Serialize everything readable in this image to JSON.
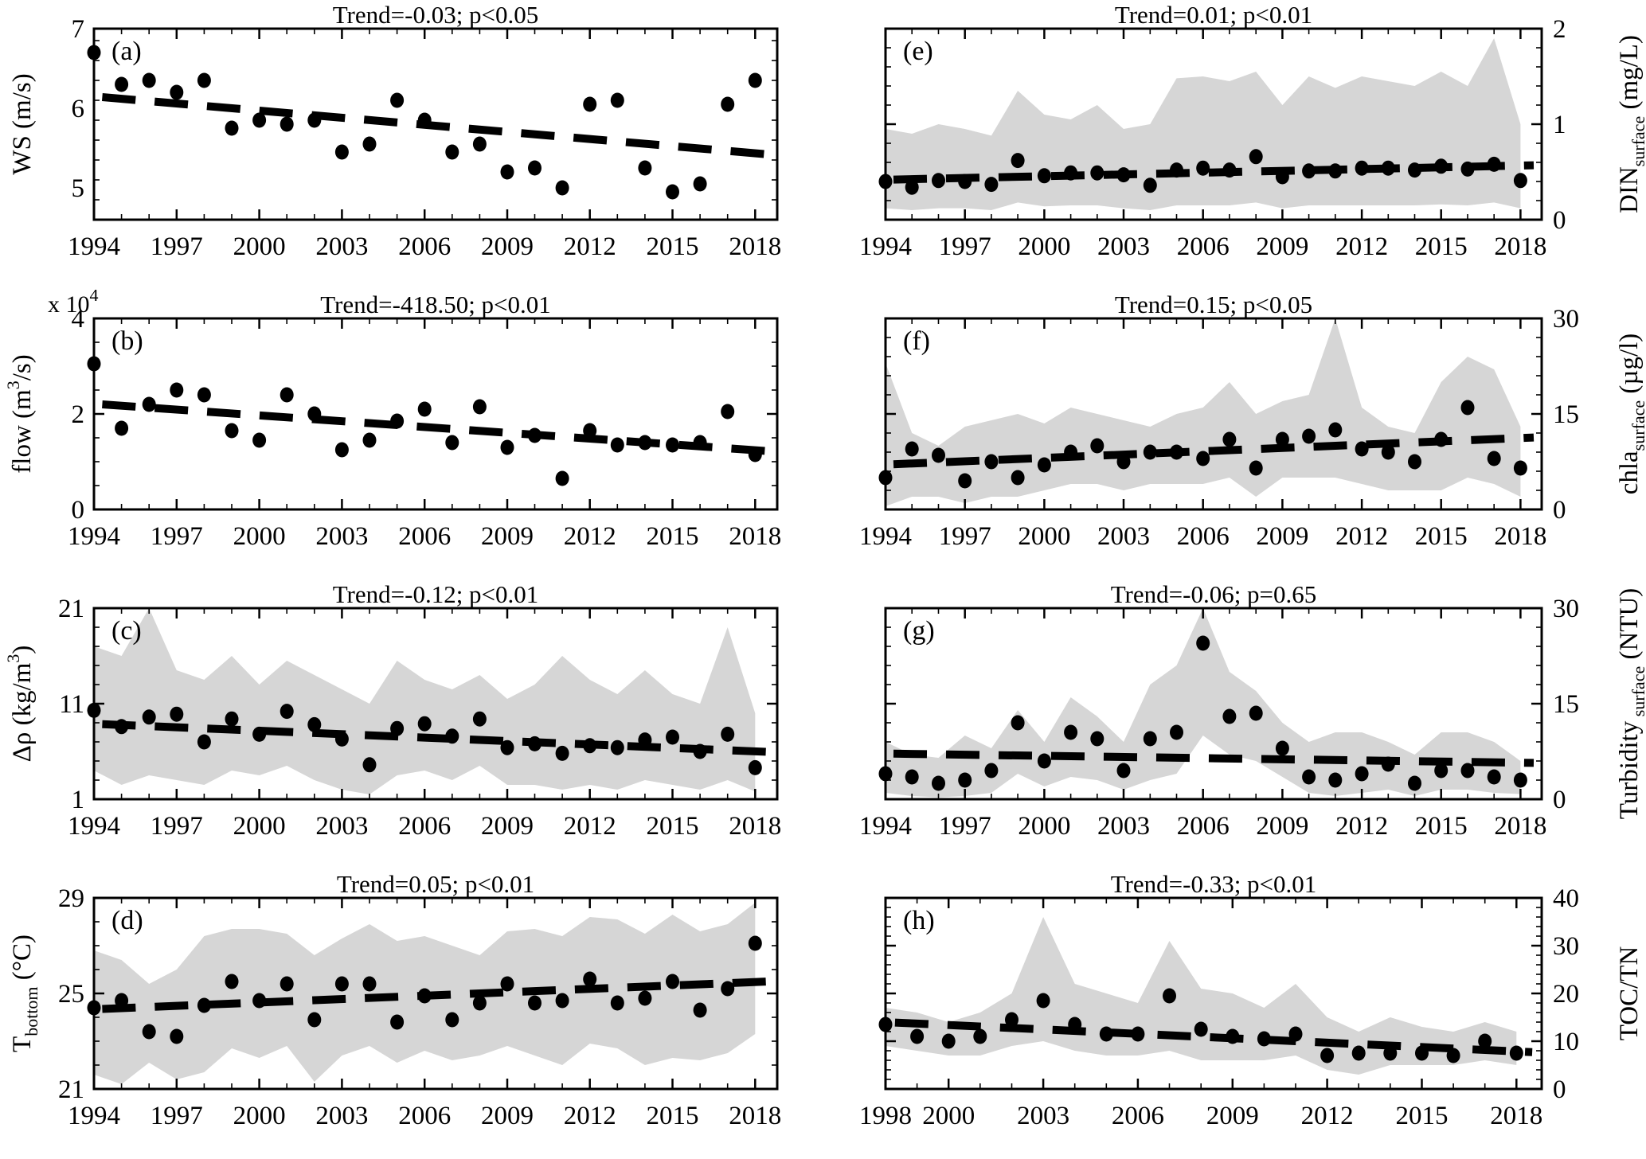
{
  "figure": {
    "background": "#ffffff",
    "band_color": "#d6d6d6",
    "point_color": "#000000",
    "axis_color": "#000000",
    "trend_style": "dashed-black"
  },
  "chart_data": [
    {
      "id": "a",
      "type": "scatter",
      "row": 0,
      "col": 0,
      "side": "left",
      "letter": "(a)",
      "title": "Trend=-0.03; p<0.05",
      "ylabel_parts": [
        {
          "t": "WS (m/s)"
        }
      ],
      "ylim": [
        4.6,
        7
      ],
      "yticks": [
        5,
        6,
        7
      ],
      "yminor": 0.25,
      "xlim": [
        1994,
        2018.8
      ],
      "xticks": [
        1994,
        1997,
        2000,
        2003,
        2006,
        2009,
        2012,
        2015,
        2018
      ],
      "years": [
        1994,
        1995,
        1996,
        1997,
        1998,
        1999,
        2000,
        2001,
        2002,
        2003,
        2004,
        2005,
        2006,
        2007,
        2008,
        2009,
        2010,
        2011,
        2012,
        2013,
        2014,
        2015,
        2016,
        2017,
        2018
      ],
      "values": [
        6.7,
        6.3,
        6.35,
        6.2,
        6.35,
        5.75,
        5.85,
        5.8,
        5.85,
        5.45,
        5.55,
        6.1,
        5.85,
        5.45,
        5.55,
        5.2,
        5.25,
        5.0,
        6.05,
        6.1,
        5.25,
        4.95,
        5.05,
        6.05,
        6.35
      ],
      "trend": {
        "x": [
          1994.3,
          2018.5
        ],
        "y": [
          6.14,
          5.42
        ]
      },
      "band": null
    },
    {
      "id": "b",
      "type": "scatter",
      "row": 1,
      "col": 0,
      "side": "left",
      "letter": "(b)",
      "title": "Trend=-418.50; p<0.01",
      "ylabel_parts": [
        {
          "t": "flow (m"
        },
        {
          "t": "3",
          "s": "sup"
        },
        {
          "t": "/s)"
        }
      ],
      "offset_parts": [
        {
          "t": "x 10"
        },
        {
          "t": "4",
          "s": "sup"
        }
      ],
      "ylim": [
        0,
        4
      ],
      "yticks": [
        0,
        2,
        4
      ],
      "yminor": 0.5,
      "xlim": [
        1994,
        2018.8
      ],
      "xticks": [
        1994,
        1997,
        2000,
        2003,
        2006,
        2009,
        2012,
        2015,
        2018
      ],
      "years": [
        1994,
        1995,
        1996,
        1997,
        1998,
        1999,
        2000,
        2001,
        2002,
        2003,
        2004,
        2005,
        2006,
        2007,
        2008,
        2009,
        2010,
        2011,
        2012,
        2013,
        2014,
        2015,
        2016,
        2017,
        2018
      ],
      "values": [
        3.05,
        1.7,
        2.2,
        2.5,
        2.4,
        1.65,
        1.45,
        2.4,
        2.0,
        1.25,
        1.45,
        1.85,
        2.1,
        1.4,
        2.15,
        1.3,
        1.55,
        0.65,
        1.65,
        1.35,
        1.4,
        1.35,
        1.4,
        2.05,
        1.15
      ],
      "trend": {
        "x": [
          1994.3,
          2018.5
        ],
        "y": [
          2.2,
          1.22
        ]
      },
      "band": null
    },
    {
      "id": "c",
      "type": "scatter",
      "row": 2,
      "col": 0,
      "side": "left",
      "letter": "(c)",
      "title": "Trend=-0.12; p<0.01",
      "ylabel_parts": [
        {
          "t": "Δρ (kg/m"
        },
        {
          "t": "3",
          "s": "sup"
        },
        {
          "t": ")"
        }
      ],
      "ylim": [
        1,
        21
      ],
      "yticks": [
        1,
        11,
        21
      ],
      "yminor": 2,
      "xlim": [
        1994,
        2018.8
      ],
      "xticks": [
        1994,
        1997,
        2000,
        2003,
        2006,
        2009,
        2012,
        2015,
        2018
      ],
      "years": [
        1994,
        1995,
        1996,
        1997,
        1998,
        1999,
        2000,
        2001,
        2002,
        2003,
        2004,
        2005,
        2006,
        2007,
        2008,
        2009,
        2010,
        2011,
        2012,
        2013,
        2014,
        2015,
        2016,
        2017,
        2018
      ],
      "values": [
        10.3,
        8.6,
        9.6,
        9.9,
        7.0,
        9.4,
        7.8,
        10.2,
        8.8,
        7.3,
        4.6,
        8.4,
        8.9,
        7.6,
        9.4,
        6.4,
        6.8,
        5.8,
        6.6,
        6.4,
        7.2,
        7.5,
        6.0,
        7.8,
        4.3
      ],
      "trend": {
        "x": [
          1994.3,
          2018.5
        ],
        "y": [
          8.85,
          5.95
        ]
      },
      "band": {
        "upper": [
          17,
          16,
          21,
          14.5,
          13.5,
          16,
          13,
          15.5,
          14,
          12.5,
          11,
          15.5,
          13.5,
          12.5,
          14,
          11.5,
          13,
          16,
          13.5,
          12,
          14.5,
          12,
          11,
          19,
          10
        ],
        "lower": [
          4,
          2.5,
          3.5,
          3,
          2.5,
          4,
          3.5,
          4.5,
          3,
          2,
          1.5,
          3.5,
          4,
          3,
          4.5,
          2.5,
          2.5,
          2,
          2.5,
          2,
          3,
          2.5,
          2,
          3,
          1.8
        ]
      }
    },
    {
      "id": "d",
      "type": "scatter",
      "row": 3,
      "col": 0,
      "side": "left",
      "letter": "(d)",
      "title": "Trend=0.05; p<0.01",
      "ylabel_parts": [
        {
          "t": "T"
        },
        {
          "t": "bottom",
          "s": "sub"
        },
        {
          "t": " (°C)"
        }
      ],
      "ylim": [
        21,
        29
      ],
      "yticks": [
        21,
        25,
        29
      ],
      "yminor": 1,
      "xlim": [
        1994,
        2018.8
      ],
      "xticks": [
        1994,
        1997,
        2000,
        2003,
        2006,
        2009,
        2012,
        2015,
        2018
      ],
      "years": [
        1994,
        1995,
        1996,
        1997,
        1998,
        1999,
        2000,
        2001,
        2002,
        2003,
        2004,
        2005,
        2006,
        2007,
        2008,
        2009,
        2010,
        2011,
        2012,
        2013,
        2014,
        2015,
        2016,
        2017,
        2018
      ],
      "values": [
        24.4,
        24.7,
        23.4,
        23.2,
        24.5,
        25.5,
        24.7,
        25.4,
        23.9,
        25.4,
        25.4,
        23.8,
        24.9,
        23.9,
        24.6,
        25.4,
        24.6,
        24.7,
        25.6,
        24.6,
        24.8,
        25.5,
        24.3,
        25.2,
        27.1
      ],
      "trend": {
        "x": [
          1994.3,
          2018.5
        ],
        "y": [
          24.35,
          25.5
        ]
      },
      "band": {
        "upper": [
          26.8,
          26.4,
          25.4,
          26.0,
          27.4,
          27.7,
          27.7,
          27.5,
          26.6,
          27.3,
          27.9,
          27.2,
          27.4,
          27.0,
          26.6,
          27.6,
          27.7,
          27.4,
          28.2,
          28.1,
          27.5,
          28.3,
          27.6,
          27.9,
          28.8
        ],
        "lower": [
          21.6,
          21.2,
          22.1,
          21.4,
          21.7,
          22.7,
          22.3,
          22.8,
          21.3,
          22.4,
          22.8,
          22.1,
          22.6,
          22.2,
          22.4,
          22.8,
          22.4,
          22.0,
          22.9,
          22.7,
          22.0,
          22.3,
          22.2,
          22.5,
          23.3
        ]
      }
    },
    {
      "id": "e",
      "type": "scatter",
      "row": 0,
      "col": 1,
      "side": "right",
      "letter": "(e)",
      "title": "Trend=0.01; p<0.01",
      "ylabel_parts": [
        {
          "t": "DIN"
        },
        {
          "t": "surface",
          "s": "sub"
        },
        {
          "t": " (mg/L)"
        }
      ],
      "ylim": [
        0,
        2
      ],
      "yticks": [
        0,
        1,
        2
      ],
      "yminor": 0.2,
      "xlim": [
        1994,
        2018.8
      ],
      "xticks": [
        1994,
        1997,
        2000,
        2003,
        2006,
        2009,
        2012,
        2015,
        2018
      ],
      "years": [
        1994,
        1995,
        1996,
        1997,
        1998,
        1999,
        2000,
        2001,
        2002,
        2003,
        2004,
        2005,
        2006,
        2007,
        2008,
        2009,
        2010,
        2011,
        2012,
        2013,
        2014,
        2015,
        2016,
        2017,
        2018
      ],
      "values": [
        0.4,
        0.34,
        0.41,
        0.4,
        0.37,
        0.62,
        0.46,
        0.49,
        0.49,
        0.47,
        0.36,
        0.52,
        0.54,
        0.52,
        0.66,
        0.45,
        0.51,
        0.51,
        0.54,
        0.54,
        0.52,
        0.56,
        0.53,
        0.58,
        0.41
      ],
      "trend": {
        "x": [
          1994.3,
          2018.5
        ],
        "y": [
          0.42,
          0.57
        ]
      },
      "band": {
        "upper": [
          0.95,
          0.9,
          1.0,
          0.95,
          0.88,
          1.35,
          1.1,
          1.05,
          1.2,
          0.95,
          1.0,
          1.48,
          1.5,
          1.45,
          1.55,
          1.2,
          1.5,
          1.38,
          1.5,
          1.45,
          1.4,
          1.55,
          1.4,
          1.9,
          1.0
        ],
        "lower": [
          0.12,
          0.1,
          0.12,
          0.12,
          0.1,
          0.18,
          0.14,
          0.15,
          0.15,
          0.12,
          0.1,
          0.15,
          0.15,
          0.15,
          0.18,
          0.12,
          0.15,
          0.15,
          0.15,
          0.15,
          0.15,
          0.16,
          0.15,
          0.18,
          0.12
        ]
      }
    },
    {
      "id": "f",
      "type": "scatter",
      "row": 1,
      "col": 1,
      "side": "right",
      "letter": "(f)",
      "title": "Trend=0.15; p<0.05",
      "ylabel_parts": [
        {
          "t": "chla"
        },
        {
          "t": "surface",
          "s": "sub"
        },
        {
          "t": " (µg/l)"
        }
      ],
      "ylim": [
        0,
        30
      ],
      "yticks": [
        0,
        15,
        30
      ],
      "yminor": 3,
      "xlim": [
        1994,
        2018.8
      ],
      "xticks": [
        1994,
        1997,
        2000,
        2003,
        2006,
        2009,
        2012,
        2015,
        2018
      ],
      "years": [
        1994,
        1995,
        1996,
        1997,
        1998,
        1999,
        2000,
        2001,
        2002,
        2003,
        2004,
        2005,
        2006,
        2007,
        2008,
        2009,
        2010,
        2011,
        2012,
        2013,
        2014,
        2015,
        2016,
        2017,
        2018
      ],
      "values": [
        5,
        9.5,
        8.5,
        4.5,
        7.5,
        5,
        7,
        9,
        10,
        7.5,
        9,
        9,
        8,
        11,
        6.5,
        11,
        11.5,
        12.5,
        9.5,
        9,
        7.5,
        11,
        16,
        8,
        6.5
      ],
      "trend": {
        "x": [
          1994.3,
          2018.5
        ],
        "y": [
          7.1,
          11.3
        ]
      },
      "band": {
        "upper": [
          23,
          12,
          10,
          13,
          14,
          15,
          13.5,
          16,
          15,
          14,
          13,
          15,
          16,
          20,
          15,
          17,
          18,
          30,
          16,
          13,
          12,
          20,
          24,
          22,
          13
        ],
        "lower": [
          0.5,
          2,
          2,
          1,
          2,
          2,
          3,
          4,
          4,
          3,
          4,
          4,
          4,
          5,
          2,
          5,
          5,
          5,
          4,
          3,
          3,
          3,
          5,
          4,
          2
        ]
      }
    },
    {
      "id": "g",
      "type": "scatter",
      "row": 2,
      "col": 1,
      "side": "right",
      "letter": "(g)",
      "title": "Trend=-0.06; p=0.65",
      "ylabel_parts": [
        {
          "t": "Turbidity"
        },
        {
          "t": " surface",
          "s": "sub"
        },
        {
          "t": " (NTU)"
        }
      ],
      "ylim": [
        0,
        30
      ],
      "yticks": [
        0,
        15,
        30
      ],
      "yminor": 3,
      "xlim": [
        1994,
        2018.8
      ],
      "xticks": [
        1994,
        1997,
        2000,
        2003,
        2006,
        2009,
        2012,
        2015,
        2018
      ],
      "years": [
        1994,
        1995,
        1996,
        1997,
        1998,
        1999,
        2000,
        2001,
        2002,
        2003,
        2004,
        2005,
        2006,
        2007,
        2008,
        2009,
        2010,
        2011,
        2012,
        2013,
        2014,
        2015,
        2016,
        2017,
        2018
      ],
      "values": [
        4,
        3.5,
        2.5,
        3,
        4.5,
        12,
        6,
        10.5,
        9.5,
        4.5,
        9.5,
        10.5,
        24.5,
        13,
        13.5,
        8,
        3.5,
        3,
        4,
        5.5,
        2.5,
        4.5,
        4.5,
        3.5,
        3
      ],
      "trend": {
        "x": [
          1994.3,
          2018.5
        ],
        "y": [
          7.15,
          5.7
        ]
      },
      "band": {
        "upper": [
          9,
          7,
          6.5,
          10,
          8,
          14,
          9,
          16,
          13,
          9,
          18,
          21,
          34,
          20,
          17,
          12,
          9,
          10.5,
          10.5,
          9,
          7,
          10.5,
          10.5,
          9,
          6
        ],
        "lower": [
          1,
          0.5,
          0.3,
          0.5,
          1,
          4,
          2,
          3.5,
          3,
          1.5,
          3,
          4,
          10,
          7,
          6,
          3.5,
          1,
          0.5,
          1,
          1.5,
          0.5,
          1.5,
          1.5,
          1,
          0.8
        ]
      }
    },
    {
      "id": "h",
      "type": "scatter",
      "row": 3,
      "col": 1,
      "side": "right",
      "letter": "(h)",
      "title": "Trend=-0.33; p<0.01",
      "ylabel_parts": [
        {
          "t": "TOC/TN"
        }
      ],
      "ylim": [
        0,
        40
      ],
      "yticks": [
        0,
        10,
        20,
        30,
        40
      ],
      "yminor": 2,
      "xlim": [
        1998,
        2018.8
      ],
      "xticks": [
        1998,
        2000,
        2003,
        2006,
        2009,
        2012,
        2015,
        2018
      ],
      "years": [
        1998,
        1999,
        2000,
        2001,
        2002,
        2003,
        2004,
        2005,
        2006,
        2007,
        2008,
        2009,
        2010,
        2011,
        2012,
        2013,
        2014,
        2015,
        2016,
        2017,
        2018
      ],
      "values": [
        13.5,
        11,
        10,
        11,
        14.5,
        18.5,
        13.5,
        11.5,
        11.5,
        19.5,
        12.5,
        11,
        10.5,
        11.5,
        7,
        7.5,
        7.5,
        7.5,
        7,
        10,
        7.5
      ],
      "trend": {
        "x": [
          1998.3,
          2018.5
        ],
        "y": [
          13.9,
          7.7
        ]
      },
      "band": {
        "upper": [
          17,
          16,
          14,
          16,
          20,
          36,
          22,
          20,
          18,
          31,
          21,
          20,
          17,
          22,
          15,
          12,
          15,
          13,
          12,
          14,
          12
        ],
        "lower": [
          9,
          8,
          7,
          7,
          9,
          10,
          8,
          7,
          7,
          8,
          6,
          6,
          6,
          7,
          4,
          3,
          5,
          5,
          5,
          6,
          5
        ]
      }
    }
  ]
}
